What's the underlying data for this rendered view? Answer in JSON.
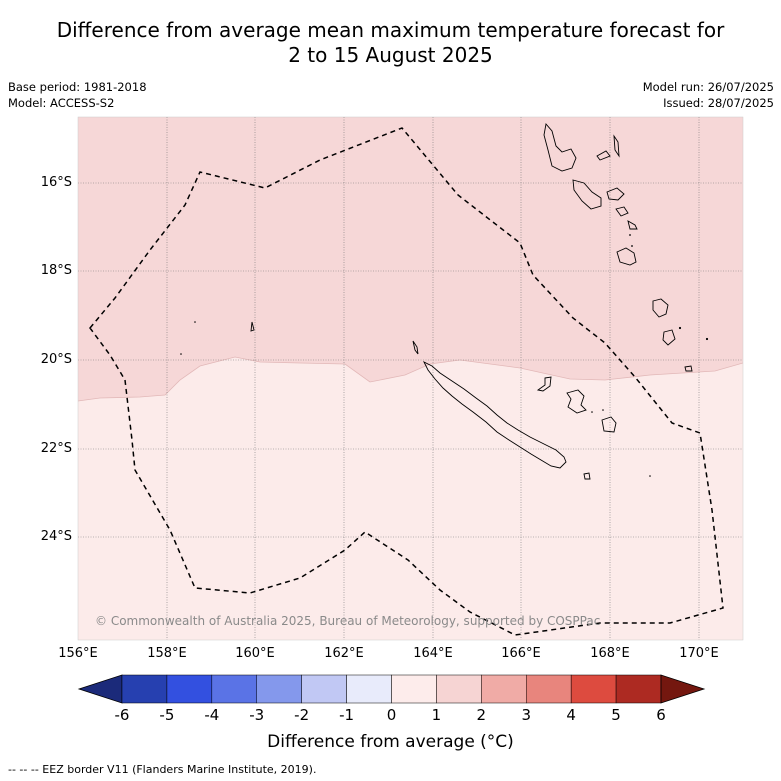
{
  "title_line1": "Difference from average mean maximum temperature forecast for",
  "title_line2": "2 to 15 August 2025",
  "base_period": "Base period: 1981-2018",
  "model": "Model: ACCESS-S2",
  "model_run": "Model run: 26/07/2025",
  "issued": "Issued: 28/07/2025",
  "copyright": "© Commonwealth of Australia 2025, Bureau of Meteorology, supported by COSPPac",
  "lat_labels": [
    "16°S",
    "18°S",
    "20°S",
    "22°S",
    "24°S"
  ],
  "lon_labels": [
    "156°E",
    "158°E",
    "160°E",
    "162°E",
    "164°E",
    "166°E",
    "168°E",
    "170°E"
  ],
  "colorbar": {
    "ticks": [
      "-6",
      "-5",
      "-4",
      "-3",
      "-2",
      "-1",
      "0",
      "1",
      "2",
      "3",
      "4",
      "5",
      "6"
    ],
    "colors": [
      "#1b2a7a",
      "#2640b0",
      "#3350e0",
      "#5a73e6",
      "#8498ec",
      "#c1c8f4",
      "#e8ebfb",
      "#fdeceb",
      "#f6d4d3",
      "#f0aba6",
      "#e8857d",
      "#dd4b3f",
      "#ad2a22",
      "#74170f"
    ],
    "title": "Difference from average (°C)"
  },
  "footer": "--  --  -- EEZ border V11 (Flanders Marine Institute, 2019).",
  "map_colors": {
    "band_1_to_2": "#f6d7d7",
    "band_0_to_1": "#fcebea"
  }
}
